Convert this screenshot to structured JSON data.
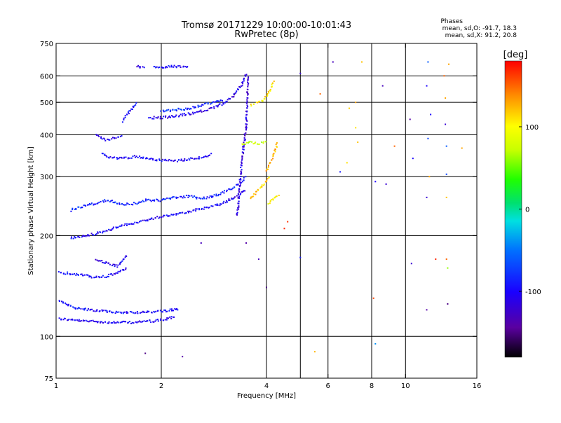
{
  "chart_data": {
    "type": "scatter",
    "title": "Tromsø 20171229 10:00:00-10:01:43",
    "subtitle": "RwPretec (8p)",
    "xlabel": "Frequency [MHz]",
    "ylabel": "Stationary phase Virtual Height [km]",
    "x_scale": "log",
    "y_scale": "log",
    "xlim": [
      1,
      16
    ],
    "ylim": [
      75,
      750
    ],
    "x_ticks": [
      1,
      2,
      4,
      6,
      8,
      10,
      16
    ],
    "x_tick_labels": [
      "1",
      "2",
      "4",
      "6",
      "8",
      "10",
      "16"
    ],
    "x_grid": [
      2,
      4,
      5,
      6,
      8,
      10
    ],
    "y_ticks": [
      75,
      100,
      200,
      300,
      400,
      500,
      600,
      750
    ],
    "y_tick_labels": [
      "75",
      "100",
      "200",
      "300",
      "400",
      "500",
      "600",
      "750"
    ],
    "y_grid": [
      100,
      200,
      300,
      400,
      500,
      600
    ],
    "grid": true,
    "legend": {
      "title": "Phases",
      "lines": [
        "mean, sd,O: -91.7, 18.3",
        "mean, sd,X:  91.2, 20.8"
      ],
      "placement": "top-right"
    },
    "colorbar": {
      "label": "[deg]",
      "range": [
        -180,
        180
      ],
      "ticks": [
        100,
        0,
        -100
      ],
      "tick_labels": [
        "100",
        "0",
        "-100"
      ]
    },
    "traces": [
      {
        "x": [
          1.02,
          1.1,
          1.2,
          1.3,
          1.4,
          1.5,
          1.6,
          1.7,
          1.8,
          1.9,
          2.0,
          2.1,
          2.2
        ],
        "y": [
          113,
          112,
          111,
          111,
          110,
          110,
          110,
          110,
          111,
          111,
          112,
          113,
          115
        ],
        "phase": -105
      },
      {
        "x": [
          1.02,
          1.08,
          1.15,
          1.25,
          1.35,
          1.45,
          1.55,
          1.65,
          1.75,
          1.85,
          1.95,
          2.05,
          2.15,
          2.25
        ],
        "y": [
          128,
          124,
          121,
          120,
          119,
          118,
          118,
          118,
          118,
          118,
          119,
          119,
          120,
          121
        ],
        "phase": -95
      },
      {
        "x": [
          1.02,
          1.1,
          1.2,
          1.3,
          1.4,
          1.5,
          1.6
        ],
        "y": [
          155,
          154,
          152,
          150,
          151,
          155,
          160
        ],
        "phase": -100
      },
      {
        "x": [
          1.3,
          1.4,
          1.5,
          1.55,
          1.6
        ],
        "y": [
          170,
          165,
          162,
          168,
          175
        ],
        "phase": -105
      },
      {
        "x": [
          1.1,
          1.2,
          1.3,
          1.4,
          1.5,
          1.6,
          1.7,
          1.8,
          1.9,
          2.0,
          2.2,
          2.4,
          2.6,
          2.8,
          3.0,
          3.2,
          3.4,
          3.5
        ],
        "y": [
          197,
          199,
          203,
          207,
          212,
          216,
          219,
          222,
          225,
          228,
          232,
          236,
          240,
          244,
          250,
          258,
          268,
          275
        ],
        "phase": -100
      },
      {
        "x": [
          1.1,
          1.2,
          1.3,
          1.4,
          1.5,
          1.6,
          1.7,
          1.8,
          2.0,
          2.2,
          2.4,
          2.6,
          2.8,
          3.0,
          3.2,
          3.4,
          3.5
        ],
        "y": [
          238,
          245,
          250,
          255,
          250,
          248,
          250,
          255,
          255,
          260,
          262,
          258,
          262,
          268,
          278,
          290,
          300
        ],
        "phase": -85
      },
      {
        "x": [
          1.35,
          1.4,
          1.5,
          1.6,
          1.7,
          1.8,
          1.9,
          2.0,
          2.2,
          2.4,
          2.6,
          2.8
        ],
        "y": [
          350,
          345,
          340,
          342,
          345,
          340,
          338,
          335,
          335,
          338,
          342,
          350
        ],
        "phase": -100
      },
      {
        "x": [
          1.3,
          1.35,
          1.4,
          1.45,
          1.5,
          1.55
        ],
        "y": [
          400,
          390,
          385,
          390,
          395,
          400
        ],
        "phase": -105
      },
      {
        "x": [
          1.55,
          1.6,
          1.65,
          1.7
        ],
        "y": [
          440,
          460,
          480,
          500
        ],
        "phase": -95
      },
      {
        "x": [
          1.85,
          2.0,
          2.2,
          2.4,
          2.6,
          2.8,
          3.0,
          3.2,
          3.4,
          3.5
        ],
        "y": [
          450,
          450,
          455,
          462,
          470,
          480,
          495,
          520,
          565,
          610
        ],
        "phase": -110
      },
      {
        "x": [
          2.0,
          2.2,
          2.4,
          2.6,
          2.8,
          3.0
        ],
        "y": [
          470,
          475,
          480,
          490,
          500,
          510
        ],
        "phase": -80
      },
      {
        "x": [
          3.3,
          3.35,
          3.4,
          3.45,
          3.5,
          3.52,
          3.55
        ],
        "y": [
          230,
          280,
          330,
          380,
          430,
          500,
          600
        ],
        "phase": -115
      },
      {
        "x": [
          1.9,
          2.0,
          2.1,
          2.2,
          2.3,
          2.4
        ],
        "y": [
          635,
          638,
          640,
          640,
          638,
          636
        ],
        "phase": -100
      },
      {
        "x": [
          1.7,
          1.75,
          1.8
        ],
        "y": [
          640,
          638,
          636
        ],
        "phase": -110
      },
      {
        "x": [
          3.4,
          3.5,
          3.6,
          3.7,
          3.8,
          3.9,
          4.0
        ],
        "y": [
          375,
          378,
          380,
          378,
          376,
          380,
          380
        ],
        "phase": 75
      },
      {
        "x": [
          3.6,
          3.7,
          3.8,
          3.9,
          4.0,
          4.1,
          4.2
        ],
        "y": [
          490,
          495,
          500,
          505,
          520,
          545,
          580
        ],
        "phase": 110
      },
      {
        "x": [
          3.6,
          3.7,
          3.8,
          3.9,
          4.0,
          4.1
        ],
        "y": [
          260,
          265,
          275,
          282,
          290,
          300
        ],
        "phase": 115
      },
      {
        "x": [
          4.0,
          4.1,
          4.2,
          4.3
        ],
        "y": [
          310,
          330,
          350,
          380
        ],
        "phase": 125
      },
      {
        "x": [
          4.05,
          4.15,
          4.25,
          4.35
        ],
        "y": [
          250,
          255,
          260,
          265
        ],
        "phase": 95
      }
    ],
    "scattered_points": [
      {
        "x": 2.3,
        "y": 87,
        "phase": -140
      },
      {
        "x": 1.8,
        "y": 89,
        "phase": -150
      },
      {
        "x": 2.6,
        "y": 190,
        "phase": -130
      },
      {
        "x": 3.5,
        "y": 190,
        "phase": -140
      },
      {
        "x": 3.8,
        "y": 170,
        "phase": -130
      },
      {
        "x": 4.0,
        "y": 140,
        "phase": -150
      },
      {
        "x": 4.5,
        "y": 210,
        "phase": 170
      },
      {
        "x": 4.6,
        "y": 220,
        "phase": 165
      },
      {
        "x": 5.0,
        "y": 172,
        "phase": -90
      },
      {
        "x": 5.0,
        "y": 610,
        "phase": -120
      },
      {
        "x": 5.5,
        "y": 90,
        "phase": 125
      },
      {
        "x": 5.7,
        "y": 530,
        "phase": 150
      },
      {
        "x": 6.2,
        "y": 660,
        "phase": -130
      },
      {
        "x": 6.5,
        "y": 310,
        "phase": -90
      },
      {
        "x": 6.8,
        "y": 330,
        "phase": 110
      },
      {
        "x": 6.9,
        "y": 480,
        "phase": 115
      },
      {
        "x": 7.2,
        "y": 500,
        "phase": 130
      },
      {
        "x": 7.2,
        "y": 420,
        "phase": 110
      },
      {
        "x": 7.3,
        "y": 380,
        "phase": 120
      },
      {
        "x": 7.5,
        "y": 660,
        "phase": 120
      },
      {
        "x": 8.1,
        "y": 130,
        "phase": 160
      },
      {
        "x": 8.2,
        "y": 95,
        "phase": -40
      },
      {
        "x": 8.2,
        "y": 290,
        "phase": -100
      },
      {
        "x": 8.6,
        "y": 560,
        "phase": -130
      },
      {
        "x": 8.8,
        "y": 285,
        "phase": -120
      },
      {
        "x": 9.3,
        "y": 370,
        "phase": 150
      },
      {
        "x": 10.3,
        "y": 445,
        "phase": -140
      },
      {
        "x": 10.4,
        "y": 165,
        "phase": -120
      },
      {
        "x": 10.5,
        "y": 340,
        "phase": -100
      },
      {
        "x": 11.5,
        "y": 120,
        "phase": -140
      },
      {
        "x": 11.5,
        "y": 260,
        "phase": -120
      },
      {
        "x": 11.5,
        "y": 560,
        "phase": -100
      },
      {
        "x": 11.6,
        "y": 660,
        "phase": -60
      },
      {
        "x": 11.6,
        "y": 390,
        "phase": -70
      },
      {
        "x": 11.7,
        "y": 300,
        "phase": 130
      },
      {
        "x": 11.8,
        "y": 460,
        "phase": -100
      },
      {
        "x": 12.2,
        "y": 170,
        "phase": 170
      },
      {
        "x": 12.9,
        "y": 600,
        "phase": 150
      },
      {
        "x": 13.0,
        "y": 515,
        "phase": 130
      },
      {
        "x": 13.0,
        "y": 430,
        "phase": -120
      },
      {
        "x": 13.1,
        "y": 370,
        "phase": -60
      },
      {
        "x": 13.1,
        "y": 305,
        "phase": -70
      },
      {
        "x": 13.1,
        "y": 260,
        "phase": 120
      },
      {
        "x": 13.1,
        "y": 170,
        "phase": 150
      },
      {
        "x": 13.2,
        "y": 160,
        "phase": 60
      },
      {
        "x": 13.2,
        "y": 125,
        "phase": -150
      },
      {
        "x": 13.3,
        "y": 650,
        "phase": 130
      },
      {
        "x": 14.5,
        "y": 365,
        "phase": 130
      }
    ]
  }
}
